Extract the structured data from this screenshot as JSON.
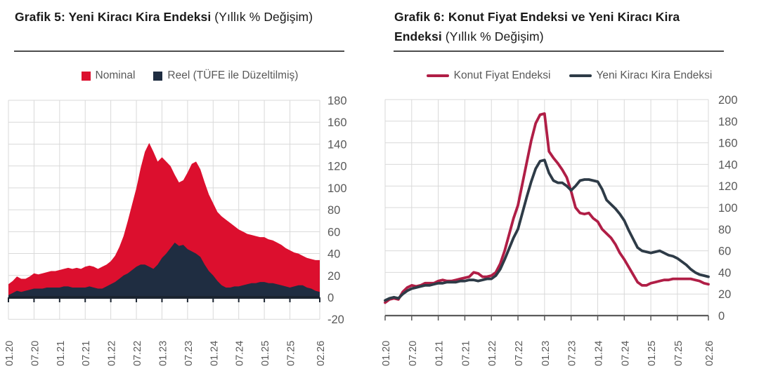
{
  "page": {
    "background": "#ffffff",
    "grid_color": "#d9d9d9",
    "axis_text_color": "#595959",
    "title_color": "#1a1a1a"
  },
  "chart_data": [
    {
      "type": "area",
      "title": "Grafik 5: Yeni Kiracı Kira Endeksi",
      "subtitle": " (Yıllık % Değişim)",
      "x_tick_labels": [
        "01.20",
        "07.20",
        "01.21",
        "07.21",
        "01.22",
        "07.22",
        "01.23",
        "07.23",
        "01.24",
        "07.24",
        "01.25",
        "07.25",
        "02.26"
      ],
      "x_tick_positions": [
        0,
        6,
        12,
        18,
        24,
        30,
        36,
        42,
        48,
        54,
        60,
        66,
        73
      ],
      "x_start": "01.20",
      "x_end": "02.26",
      "n_points": 74,
      "ylim": [
        -20,
        180
      ],
      "ytick_step": 20,
      "grid": true,
      "legend_position": "top",
      "series": [
        {
          "name": "Nominal",
          "marker": "square",
          "color": "#DC0F2E",
          "values": [
            12,
            15,
            19,
            17,
            17,
            19,
            22,
            21,
            22,
            23,
            24,
            24,
            25,
            26,
            27,
            26,
            27,
            26,
            28,
            29,
            28,
            26,
            28,
            30,
            33,
            38,
            46,
            56,
            70,
            85,
            100,
            118,
            133,
            141,
            133,
            124,
            128,
            124,
            120,
            112,
            105,
            107,
            114,
            122,
            124,
            117,
            105,
            94,
            86,
            78,
            74,
            71,
            68,
            65,
            62,
            60,
            58,
            57,
            56,
            55,
            55,
            53,
            52,
            50,
            48,
            45,
            43,
            41,
            40,
            38,
            36,
            35,
            34,
            34
          ]
        },
        {
          "name": "Reel (TÜFE ile Düzeltilmiş)",
          "marker": "square",
          "color": "#1F2D41",
          "values": [
            2,
            4,
            6,
            5,
            6,
            7,
            8,
            8,
            8,
            9,
            9,
            9,
            9,
            10,
            10,
            9,
            9,
            9,
            9,
            10,
            9,
            8,
            8,
            10,
            12,
            14,
            17,
            20,
            22,
            25,
            28,
            30,
            30,
            28,
            26,
            30,
            36,
            40,
            45,
            50,
            47,
            48,
            44,
            42,
            40,
            37,
            30,
            24,
            20,
            15,
            11,
            9,
            9,
            10,
            10,
            11,
            12,
            13,
            13,
            14,
            14,
            13,
            13,
            12,
            11,
            10,
            9,
            10,
            11,
            11,
            9,
            8,
            6,
            5
          ]
        }
      ]
    },
    {
      "type": "line",
      "title": "Grafik 6: Konut Fiyat Endeksi ve Yeni Kiracı Kira Endeksi",
      "subtitle": " (Yıllık % Değişim)",
      "x_tick_labels": [
        "01.20",
        "07.20",
        "01.21",
        "07.21",
        "01.22",
        "07.22",
        "01.23",
        "07.23",
        "01.24",
        "07.24",
        "01.25",
        "07.25",
        "02.26"
      ],
      "x_tick_positions": [
        0,
        6,
        12,
        18,
        24,
        30,
        36,
        42,
        48,
        54,
        60,
        66,
        73
      ],
      "x_start": "01.20",
      "x_end": "02.26",
      "n_points": 74,
      "ylim": [
        0,
        200
      ],
      "ytick_step": 20,
      "grid": true,
      "legend_position": "top",
      "series": [
        {
          "name": "Konut Fiyat Endeksi",
          "marker": "line",
          "color": "#B01E46",
          "values": [
            12,
            15,
            16,
            15,
            22,
            26,
            28,
            27,
            28,
            30,
            30,
            30,
            32,
            33,
            32,
            32,
            33,
            34,
            35,
            36,
            40,
            39,
            36,
            36,
            37,
            40,
            48,
            60,
            75,
            90,
            102,
            122,
            142,
            162,
            178,
            186,
            187,
            152,
            146,
            141,
            135,
            128,
            115,
            100,
            95,
            94,
            95,
            90,
            87,
            80,
            76,
            72,
            66,
            58,
            52,
            45,
            38,
            31,
            28,
            28,
            30,
            31,
            32,
            33,
            33,
            34,
            34,
            34,
            34,
            34,
            33,
            32,
            30,
            29
          ]
        },
        {
          "name": "Yeni Kiracı Kira Endeksi",
          "marker": "line",
          "color": "#2E3B47",
          "values": [
            14,
            16,
            17,
            16,
            20,
            23,
            25,
            26,
            27,
            28,
            28,
            29,
            30,
            30,
            31,
            31,
            31,
            32,
            32,
            33,
            33,
            32,
            33,
            34,
            34,
            37,
            43,
            52,
            62,
            72,
            80,
            95,
            110,
            124,
            136,
            143,
            144,
            132,
            125,
            123,
            123,
            120,
            116,
            120,
            125,
            126,
            126,
            125,
            124,
            117,
            107,
            103,
            99,
            94,
            88,
            79,
            71,
            63,
            60,
            59,
            58,
            59,
            60,
            58,
            56,
            55,
            53,
            50,
            47,
            43,
            40,
            38,
            37,
            36
          ]
        }
      ]
    }
  ]
}
